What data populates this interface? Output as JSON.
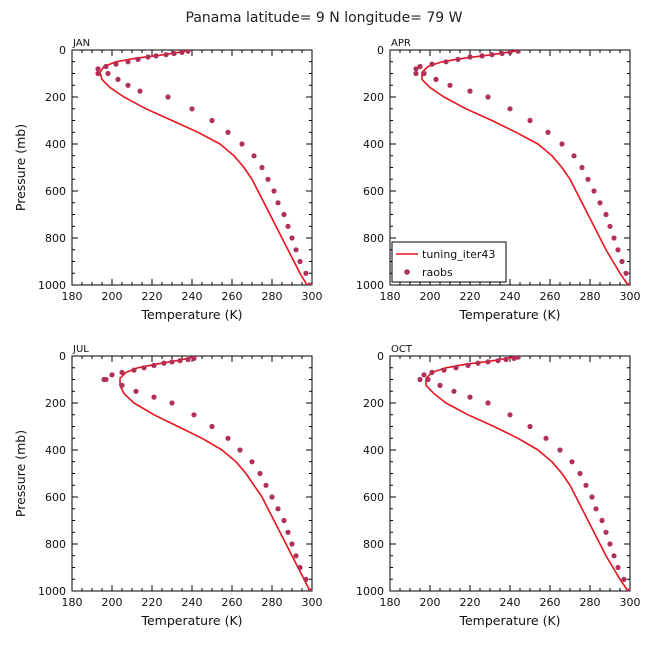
{
  "figure": {
    "title": "Panama  latitude= 9 N longitude= 79 W",
    "legend": {
      "items": [
        "tuning_iter43",
        "raobs"
      ],
      "panel": "APR"
    },
    "colors": {
      "model_line": "#e8141c",
      "raobs_points": "#b0305a"
    }
  },
  "chart_data": [
    {
      "type": "line",
      "panel": "JAN",
      "xlabel": "Temperature (K)",
      "ylabel": "Pressure (mb)",
      "xlim": [
        180,
        300
      ],
      "ylim": [
        0,
        1000
      ],
      "y_inverted": true,
      "xticks": [
        180,
        200,
        220,
        240,
        260,
        280,
        300
      ],
      "yticks": [
        0,
        200,
        400,
        600,
        800,
        1000
      ],
      "series": [
        {
          "name": "tuning_iter43",
          "kind": "line",
          "x": [
            297.5,
            294,
            291,
            288,
            285,
            282,
            279,
            276,
            273,
            270,
            266,
            261,
            254,
            243,
            230,
            217,
            206,
            199,
            195,
            194,
            196,
            202,
            212,
            224,
            232,
            236,
            238
          ],
          "y": [
            1000,
            950,
            900,
            850,
            800,
            750,
            700,
            650,
            600,
            550,
            500,
            450,
            400,
            350,
            300,
            250,
            200,
            160,
            125,
            95,
            70,
            50,
            35,
            22,
            12,
            5,
            0
          ]
        },
        {
          "name": "raobs",
          "kind": "scatter",
          "x": [
            299,
            297,
            294,
            292,
            290,
            288,
            286,
            283,
            281,
            278,
            275,
            271,
            265,
            258,
            250,
            240,
            228,
            214,
            208,
            203,
            198,
            193,
            193,
            197,
            202,
            208,
            213,
            218,
            222,
            227,
            231,
            235,
            238
          ],
          "y": [
            1000,
            950,
            900,
            850,
            800,
            750,
            700,
            650,
            600,
            550,
            500,
            450,
            400,
            350,
            300,
            250,
            200,
            175,
            150,
            125,
            100,
            100,
            80,
            70,
            60,
            50,
            40,
            30,
            25,
            20,
            15,
            10,
            5
          ]
        }
      ]
    },
    {
      "type": "line",
      "panel": "APR",
      "xlabel": "Temperature (K)",
      "ylabel": "",
      "xlim": [
        180,
        300
      ],
      "ylim": [
        0,
        1000
      ],
      "y_inverted": true,
      "xticks": [
        180,
        200,
        220,
        240,
        260,
        280,
        300
      ],
      "yticks": [
        0,
        200,
        400,
        600,
        800,
        1000
      ],
      "series": [
        {
          "name": "tuning_iter43",
          "kind": "line",
          "x": [
            299,
            295,
            291.5,
            288,
            285,
            282,
            279,
            276,
            273,
            270,
            266,
            261,
            254,
            243,
            231,
            218,
            207,
            200,
            196,
            196,
            199,
            206,
            217,
            229,
            237,
            242,
            244
          ],
          "y": [
            1000,
            950,
            900,
            850,
            800,
            750,
            700,
            650,
            600,
            550,
            500,
            450,
            400,
            350,
            300,
            250,
            200,
            160,
            125,
            95,
            70,
            50,
            35,
            22,
            12,
            5,
            0
          ]
        },
        {
          "name": "raobs",
          "kind": "scatter",
          "x": [
            300,
            298,
            296,
            294,
            292,
            290,
            288,
            285,
            282,
            279,
            276,
            272,
            266,
            259,
            250,
            240,
            229,
            220,
            210,
            203,
            197,
            193,
            193,
            195,
            201,
            208,
            214,
            220,
            226,
            231,
            236,
            240,
            244
          ],
          "y": [
            1000,
            950,
            900,
            850,
            800,
            750,
            700,
            650,
            600,
            550,
            500,
            450,
            400,
            350,
            300,
            250,
            200,
            175,
            150,
            125,
            100,
            100,
            80,
            70,
            60,
            50,
            40,
            30,
            25,
            20,
            15,
            10,
            5
          ]
        }
      ]
    },
    {
      "type": "line",
      "panel": "JUL",
      "xlabel": "Temperature (K)",
      "ylabel": "Pressure (mb)",
      "xlim": [
        180,
        300
      ],
      "ylim": [
        0,
        1000
      ],
      "y_inverted": true,
      "xticks": [
        180,
        200,
        220,
        240,
        260,
        280,
        300
      ],
      "yticks": [
        0,
        200,
        400,
        600,
        800,
        1000
      ],
      "series": [
        {
          "name": "tuning_iter43",
          "kind": "line",
          "x": [
            299,
            296,
            293,
            290,
            287,
            284,
            281,
            278,
            275,
            271,
            267,
            262,
            255,
            245,
            233,
            221,
            211,
            206,
            204,
            204,
            207,
            213,
            222,
            231,
            237,
            240,
            241
          ],
          "y": [
            1000,
            950,
            900,
            850,
            800,
            750,
            700,
            650,
            600,
            550,
            500,
            450,
            400,
            350,
            300,
            250,
            200,
            160,
            125,
            95,
            70,
            50,
            35,
            22,
            12,
            5,
            0
          ]
        },
        {
          "name": "raobs",
          "kind": "scatter",
          "x": [
            299,
            297,
            294,
            292,
            290,
            288,
            286,
            283,
            280,
            277,
            274,
            270,
            264,
            258,
            250,
            241,
            230,
            221,
            212,
            205,
            197,
            196,
            200,
            205,
            211,
            216,
            221,
            226,
            230,
            234,
            238,
            241
          ],
          "y": [
            1000,
            950,
            900,
            850,
            800,
            750,
            700,
            650,
            600,
            550,
            500,
            450,
            400,
            350,
            300,
            250,
            200,
            175,
            150,
            125,
            100,
            100,
            80,
            70,
            60,
            50,
            40,
            30,
            25,
            20,
            15,
            10
          ]
        }
      ]
    },
    {
      "type": "line",
      "panel": "OCT",
      "xlabel": "Temperature (K)",
      "ylabel": "",
      "xlim": [
        180,
        300
      ],
      "ylim": [
        0,
        1000
      ],
      "y_inverted": true,
      "xticks": [
        180,
        200,
        220,
        240,
        260,
        280,
        300
      ],
      "yticks": [
        0,
        200,
        400,
        600,
        800,
        1000
      ],
      "series": [
        {
          "name": "tuning_iter43",
          "kind": "line",
          "x": [
            299,
            295,
            291.5,
            288,
            285,
            282,
            279,
            276,
            273,
            270,
            266,
            261,
            254,
            244,
            232,
            219,
            208,
            202,
            198,
            198,
            201,
            208,
            218,
            230,
            237,
            241,
            243
          ],
          "y": [
            1000,
            950,
            900,
            850,
            800,
            750,
            700,
            650,
            600,
            550,
            500,
            450,
            400,
            350,
            300,
            250,
            200,
            160,
            125,
            95,
            70,
            50,
            35,
            22,
            12,
            5,
            0
          ]
        },
        {
          "name": "raobs",
          "kind": "scatter",
          "x": [
            299,
            297,
            294,
            292,
            290,
            288,
            286,
            283,
            281,
            278,
            275,
            271,
            265,
            258,
            250,
            240,
            229,
            220,
            212,
            205,
            199,
            195,
            197,
            201,
            207,
            213,
            219,
            224,
            229,
            234,
            238,
            242,
            244
          ],
          "y": [
            1000,
            950,
            900,
            850,
            800,
            750,
            700,
            650,
            600,
            550,
            500,
            450,
            400,
            350,
            300,
            250,
            200,
            175,
            150,
            125,
            100,
            100,
            80,
            70,
            60,
            50,
            40,
            30,
            25,
            20,
            15,
            10,
            5
          ]
        }
      ]
    }
  ]
}
